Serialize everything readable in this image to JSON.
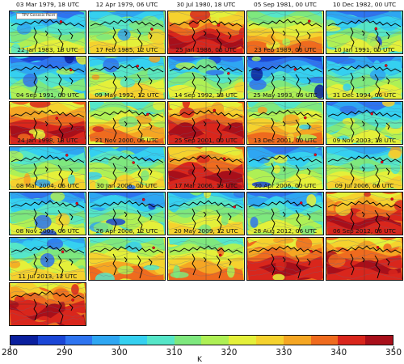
{
  "panels": [
    {
      "title": "03 Mar 1979, 18 UTC",
      "tone": "cool"
    },
    {
      "title": "12 Apr 1979, 06 UTC",
      "tone": "mixed"
    },
    {
      "title": "30 Jul 1980, 18 UTC",
      "tone": "hot"
    },
    {
      "title": "05 Sep 1981, 00 UTC",
      "tone": "warm"
    },
    {
      "title": "10 Dec 1982, 00 UTC",
      "tone": "cool"
    },
    {
      "title": "22 Jan 1983, 18 UTC",
      "tone": "cold"
    },
    {
      "title": "17 Feb 1985, 12 UTC",
      "tone": "mixed"
    },
    {
      "title": "25 Jan 1986, 06 UTC",
      "tone": "cool"
    },
    {
      "title": "23 Feb 1989, 06 UTC",
      "tone": "cold"
    },
    {
      "title": "10 Jan 1991, 00 UTC",
      "tone": "cool"
    },
    {
      "title": "04 Sep 1991, 00 UTC",
      "tone": "hot"
    },
    {
      "title": "09 May 1992, 12 UTC",
      "tone": "warm"
    },
    {
      "title": "14 Sep 1992, 18 UTC",
      "tone": "hot"
    },
    {
      "title": "25 May 1993, 06 UTC",
      "tone": "warm"
    },
    {
      "title": "31 Dec 1994, 06 UTC",
      "tone": "cool"
    },
    {
      "title": "24 Jan 1998, 18 UTC",
      "tone": "mixed"
    },
    {
      "title": "21 Nov 2000, 06 UTC",
      "tone": "mixed"
    },
    {
      "title": "25 Sep 2001, 00 UTC",
      "tone": "hot"
    },
    {
      "title": "13 Dec 2001, 00 UTC",
      "tone": "cool"
    },
    {
      "title": "09 Nov 2003, 18 UTC",
      "tone": "mixed"
    },
    {
      "title": "08 Mar 2004, 06 UTC",
      "tone": "cool"
    },
    {
      "title": "30 Jan 2006, 00 UTC",
      "tone": "cool"
    },
    {
      "title": "17 Mar 2006, 18 UTC",
      "tone": "mixed"
    },
    {
      "title": "20 Apr 2006, 00 UTC",
      "tone": "cool"
    },
    {
      "title": "09 Jul 2006, 06 UTC",
      "tone": "hot"
    },
    {
      "title": "08 Nov 2007, 06 UTC",
      "tone": "mixed"
    },
    {
      "title": "26 Apr 2008, 12 UTC",
      "tone": "warm"
    },
    {
      "title": "20 May 2009, 12 UTC",
      "tone": "warm"
    },
    {
      "title": "28 Aug 2012, 06 UTC",
      "tone": "hot"
    },
    {
      "title": "06 Sep 2012, 06 UTC",
      "tone": "hot"
    },
    {
      "title": "11 Jul 2013, 12 UTC",
      "tone": "hot"
    }
  ],
  "legend_label": "TPV Genesis Point",
  "colorbar": {
    "min": 280,
    "max": 350,
    "step": 5,
    "tick_labels": [
      "280",
      "290",
      "300",
      "310",
      "320",
      "330",
      "340",
      "350"
    ],
    "unit": "K",
    "colors": [
      "#0a1f9e",
      "#1a46d6",
      "#2e74f0",
      "#2ea6f2",
      "#35d0f0",
      "#55e6c8",
      "#7ee87e",
      "#aef055",
      "#e4f03a",
      "#f5d22e",
      "#f5a623",
      "#ef6b1e",
      "#d9261c",
      "#a80f1a"
    ]
  },
  "genesis_point_color": "#e8001a"
}
